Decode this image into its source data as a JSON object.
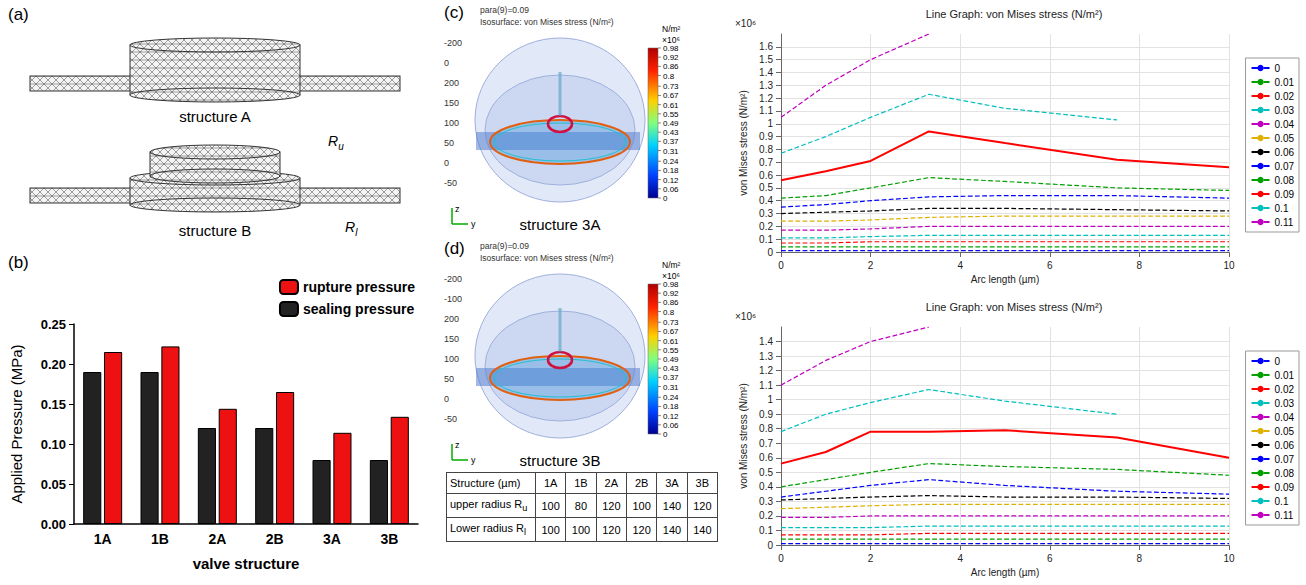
{
  "panel_a": {
    "letter": "(a)",
    "captions": [
      "structure A",
      "structure B"
    ],
    "radius_labels": [
      {
        "text": "R",
        "sub": "u"
      },
      {
        "text": "R",
        "sub": "l"
      }
    ]
  },
  "chart_data": [
    {
      "type": "bar",
      "panel": "(b)",
      "x_label": "valve structure",
      "y_label": "Applied Pressure (MPa)",
      "categories": [
        "1A",
        "1B",
        "2A",
        "2B",
        "3A",
        "3B"
      ],
      "series": [
        {
          "name": "sealing pressure",
          "color": "#222222",
          "values": [
            0.19,
            0.19,
            0.12,
            0.12,
            0.08,
            0.08
          ]
        },
        {
          "name": "rupture pressure",
          "color": "#ee1111",
          "values": [
            0.215,
            0.222,
            0.144,
            0.165,
            0.114,
            0.134
          ]
        }
      ],
      "ylim": [
        0,
        0.25
      ],
      "yticks": [
        {
          "value": 0,
          "label": "0.00"
        },
        {
          "value": 0.05,
          "label": "0.05"
        },
        {
          "value": 0.1,
          "label": "0.10"
        },
        {
          "value": 0.15,
          "label": "0.15"
        },
        {
          "value": 0.2,
          "label": "0.20"
        },
        {
          "value": 0.25,
          "label": "0.25"
        }
      ],
      "legend": "upper right",
      "grid": false
    },
    {
      "type": "line",
      "title": "Line Graph: von Mises stress (N/m²)",
      "y_label": "von Mises stress (N/m²)",
      "y_scale_label": "×10⁶",
      "x_label": "Arc length (µm)",
      "x": [
        0,
        1,
        2,
        3.3,
        5,
        7.5,
        10
      ],
      "xlim": [
        0,
        10
      ],
      "xticks": [
        0,
        2,
        4,
        6,
        8,
        10
      ],
      "ylim": [
        0,
        1.7
      ],
      "yticks": [
        0,
        0.1,
        0.2,
        0.3,
        0.4,
        0.5,
        0.6,
        0.7,
        0.8,
        0.9,
        1,
        1.1,
        1.2,
        1.3,
        1.4,
        1.5,
        1.6
      ],
      "legend": "right",
      "grid": true,
      "series": [
        {
          "name": "0",
          "color": "#0000ff",
          "line_style": "dashed",
          "values": [
            0.01,
            0.01,
            0.01,
            0.01,
            0.01,
            0.01,
            0.01
          ]
        },
        {
          "name": "0.01",
          "color": "#00a000",
          "line_style": "dashed",
          "values": [
            0.04,
            0.04,
            0.04,
            0.04,
            0.04,
            0.04,
            0.04
          ]
        },
        {
          "name": "0.02",
          "color": "#ff0000",
          "line_style": "dashed",
          "values": [
            0.07,
            0.07,
            0.08,
            0.08,
            0.08,
            0.08,
            0.08
          ]
        },
        {
          "name": "0.03",
          "color": "#00bfbf",
          "line_style": "dashed",
          "values": [
            0.11,
            0.11,
            0.12,
            0.13,
            0.13,
            0.13,
            0.13
          ]
        },
        {
          "name": "0.04",
          "color": "#bf00bf",
          "line_style": "dashed",
          "values": [
            0.17,
            0.17,
            0.18,
            0.2,
            0.2,
            0.2,
            0.2
          ]
        },
        {
          "name": "0.05",
          "color": "#e0b000",
          "line_style": "dashed",
          "values": [
            0.24,
            0.24,
            0.25,
            0.27,
            0.28,
            0.28,
            0.28
          ]
        },
        {
          "name": "0.06",
          "color": "#000000",
          "line_style": "dashed",
          "values": [
            0.3,
            0.31,
            0.32,
            0.34,
            0.34,
            0.33,
            0.32
          ]
        },
        {
          "name": "0.07",
          "color": "#0000ff",
          "line_style": "dashed",
          "values": [
            0.35,
            0.37,
            0.4,
            0.43,
            0.44,
            0.44,
            0.42
          ]
        },
        {
          "name": "0.08",
          "color": "#00a000",
          "line_style": "dashed",
          "values": [
            0.42,
            0.44,
            0.5,
            0.58,
            0.55,
            0.5,
            0.48
          ]
        },
        {
          "name": "0.09",
          "color": "#ff0000",
          "line_style": "solid",
          "values": [
            0.56,
            0.63,
            0.71,
            0.94,
            0.85,
            0.72,
            0.66
          ]
        },
        {
          "name": "0.1",
          "color": "#00bfbf",
          "line_style": "dashed",
          "values": [
            0.77,
            0.9,
            1.05,
            1.23,
            1.12,
            1.03,
            null
          ]
        },
        {
          "name": "0.11",
          "color": "#bf00bf",
          "line_style": "dashed",
          "values": [
            1.05,
            1.3,
            1.5,
            1.7,
            null,
            null,
            null
          ]
        }
      ]
    },
    {
      "type": "line",
      "title": "Line Graph: von Mises stress (N/m²)",
      "y_label": "von Mises stress (N/m²)",
      "y_scale_label": "×10⁶",
      "x_label": "Arc length (µm)",
      "x": [
        0,
        1,
        2,
        3.3,
        5,
        7.5,
        10
      ],
      "xlim": [
        0,
        10
      ],
      "xticks": [
        0,
        2,
        4,
        6,
        8,
        10
      ],
      "ylim": [
        0,
        1.5
      ],
      "yticks": [
        0,
        0.1,
        0.2,
        0.3,
        0.4,
        0.5,
        0.6,
        0.7,
        0.8,
        0.9,
        1,
        1.1,
        1.2,
        1.3,
        1.4
      ],
      "legend": "right",
      "grid": true,
      "series": [
        {
          "name": "0",
          "color": "#0000ff",
          "line_style": "dashed",
          "values": [
            0.01,
            0.01,
            0.01,
            0.01,
            0.01,
            0.01,
            0.01
          ]
        },
        {
          "name": "0.01",
          "color": "#00a000",
          "line_style": "dashed",
          "values": [
            0.04,
            0.04,
            0.04,
            0.04,
            0.04,
            0.04,
            0.04
          ]
        },
        {
          "name": "0.02",
          "color": "#ff0000",
          "line_style": "dashed",
          "values": [
            0.07,
            0.07,
            0.07,
            0.08,
            0.08,
            0.08,
            0.08
          ]
        },
        {
          "name": "0.03",
          "color": "#00bfbf",
          "line_style": "dashed",
          "values": [
            0.12,
            0.12,
            0.12,
            0.13,
            0.13,
            0.13,
            0.13
          ]
        },
        {
          "name": "0.04",
          "color": "#bf00bf",
          "line_style": "dashed",
          "values": [
            0.19,
            0.19,
            0.2,
            0.2,
            0.2,
            0.2,
            0.2
          ]
        },
        {
          "name": "0.05",
          "color": "#e0b000",
          "line_style": "dashed",
          "values": [
            0.25,
            0.26,
            0.27,
            0.28,
            0.28,
            0.28,
            0.28
          ]
        },
        {
          "name": "0.06",
          "color": "#000000",
          "line_style": "dashed",
          "values": [
            0.31,
            0.32,
            0.33,
            0.34,
            0.33,
            0.33,
            0.32
          ]
        },
        {
          "name": "0.07",
          "color": "#0000ff",
          "line_style": "dashed",
          "values": [
            0.33,
            0.37,
            0.41,
            0.45,
            0.41,
            0.37,
            0.35
          ]
        },
        {
          "name": "0.08",
          "color": "#00a000",
          "line_style": "dashed",
          "values": [
            0.4,
            0.45,
            0.5,
            0.56,
            0.54,
            0.52,
            0.48
          ]
        },
        {
          "name": "0.09",
          "color": "#ff0000",
          "line_style": "solid",
          "values": [
            0.56,
            0.64,
            0.78,
            0.78,
            0.79,
            0.74,
            0.6
          ]
        },
        {
          "name": "0.1",
          "color": "#00bfbf",
          "line_style": "dashed",
          "values": [
            0.78,
            0.9,
            0.98,
            1.07,
            0.99,
            0.9,
            null
          ]
        },
        {
          "name": "0.11",
          "color": "#bf00bf",
          "line_style": "dashed",
          "values": [
            1.1,
            1.27,
            1.4,
            1.5,
            null,
            null,
            null
          ]
        }
      ]
    }
  ],
  "panel_c": {
    "letter": "(c)",
    "header": [
      "para(9)=0.09",
      "Isosurface: von Mises stress (N/m²)"
    ],
    "axis_numbers": [
      "-200",
      "0",
      "200",
      "150",
      "100",
      "50",
      "0",
      "-50"
    ],
    "axis_letters": [
      "z",
      "y"
    ],
    "colorbar": {
      "unit": "N/m²",
      "scale_label": "×10⁶",
      "range": [
        0,
        0.98
      ],
      "ticks": [
        0.98,
        0.92,
        0.86,
        0.8,
        0.73,
        0.67,
        0.61,
        0.55,
        0.49,
        0.43,
        0.37,
        0.31,
        0.24,
        0.18,
        0.12,
        0.06,
        0
      ]
    },
    "caption": "structure 3A"
  },
  "panel_d": {
    "letter": "(d)",
    "header": [
      "para(9)=0.09",
      "Isosurface: von Mises stress (N/m²)"
    ],
    "axis_numbers": [
      "-200",
      "-100",
      "200",
      "150",
      "100",
      "50",
      "0",
      "-50"
    ],
    "axis_letters": [
      "z",
      "y"
    ],
    "colorbar": {
      "unit": "N/m²",
      "scale_label": "×10⁶",
      "range": [
        0,
        0.98
      ],
      "ticks": [
        0.98,
        0.92,
        0.86,
        0.8,
        0.73,
        0.67,
        0.61,
        0.55,
        0.49,
        0.43,
        0.37,
        0.31,
        0.24,
        0.18,
        0.12,
        0.06,
        0
      ]
    },
    "caption": "structure 3B"
  },
  "table": {
    "header": [
      "Structure (µm)",
      "1A",
      "1B",
      "2A",
      "2B",
      "3A",
      "3B"
    ],
    "rows": [
      [
        {
          "text": "upper radius R",
          "sub": "u"
        },
        100,
        80,
        120,
        100,
        140,
        120
      ],
      [
        {
          "text": "Lower radius R",
          "sub": "l"
        },
        100,
        100,
        120,
        120,
        140,
        140
      ]
    ]
  }
}
